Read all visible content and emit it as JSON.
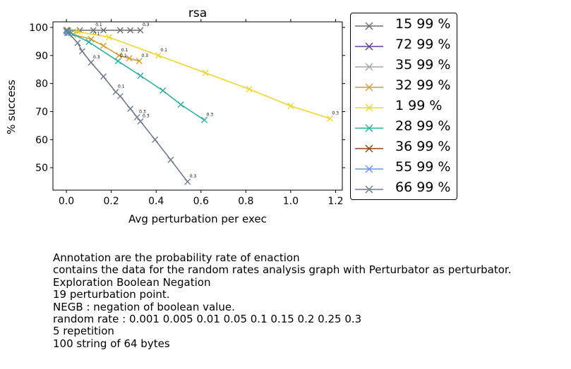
{
  "chart_data": {
    "type": "line",
    "title": "rsa",
    "xlabel": "Avg perturbation per exec",
    "ylabel": "% success",
    "xlim": [
      -0.06,
      1.23
    ],
    "ylim": [
      42,
      102
    ],
    "xticks": [
      "0.0",
      "0.2",
      "0.4",
      "0.6",
      "0.8",
      "1.0",
      "1.2"
    ],
    "yticks": [
      "50",
      "60",
      "70",
      "80",
      "90",
      "100"
    ],
    "grid": false,
    "legend_placement": "outside-right",
    "series": [
      {
        "name": "15 99 %",
        "color": "#6e6e6e",
        "points": [
          [
            0,
            99
          ],
          [
            0.003,
            99
          ],
          [
            0.005,
            99
          ],
          [
            0.06,
            99
          ],
          [
            0.12,
            99
          ],
          [
            0.165,
            99
          ],
          [
            0.24,
            99
          ],
          [
            0.285,
            99
          ],
          [
            0.33,
            99
          ]
        ],
        "annotations": [
          {
            "text": "0.1",
            "i": 4
          },
          {
            "text": "0.3",
            "i": 8
          }
        ]
      },
      {
        "name": "72 99 %",
        "color": "#6a3d9a",
        "points": [
          [
            0,
            99
          ],
          [
            0.001,
            99
          ],
          [
            0.002,
            99
          ]
        ],
        "annotations": []
      },
      {
        "name": "35 99 %",
        "color": "#a6a6a6",
        "points": [
          [
            0,
            99
          ],
          [
            0.001,
            99
          ],
          [
            0.003,
            99
          ]
        ],
        "annotations": []
      },
      {
        "name": "32 99 %",
        "color": "#d39e2c",
        "points": [
          [
            0,
            99
          ],
          [
            0.003,
            99
          ],
          [
            0.006,
            98.5
          ],
          [
            0.03,
            97.5
          ],
          [
            0.11,
            95.8
          ],
          [
            0.165,
            93.5
          ],
          [
            0.235,
            90
          ],
          [
            0.28,
            89
          ],
          [
            0.325,
            88
          ]
        ],
        "annotations": [
          {
            "text": "0.1",
            "i": 4
          },
          {
            "text": "0.1",
            "i": 6
          },
          {
            "text": "0.3",
            "i": 8
          }
        ]
      },
      {
        "name": "1 99 %",
        "color": "#f0d62b",
        "points": [
          [
            0,
            99
          ],
          [
            0.01,
            98.8
          ],
          [
            0.05,
            98.5
          ],
          [
            0.19,
            96.5
          ],
          [
            0.41,
            90
          ],
          [
            0.62,
            83.8
          ],
          [
            0.815,
            78
          ],
          [
            1.0,
            72
          ],
          [
            1.175,
            67.5
          ]
        ],
        "annotations": [
          {
            "text": "0.1",
            "i": 4
          },
          {
            "text": "0.3",
            "i": 8
          }
        ]
      },
      {
        "name": "28 99 %",
        "color": "#2ab0a4",
        "points": [
          [
            0,
            99
          ],
          [
            0.005,
            98.5
          ],
          [
            0.02,
            98
          ],
          [
            0.1,
            94.8
          ],
          [
            0.23,
            88
          ],
          [
            0.33,
            82.8
          ],
          [
            0.43,
            77.5
          ],
          [
            0.51,
            72.5
          ],
          [
            0.615,
            67
          ]
        ],
        "annotations": [
          {
            "text": "0.1",
            "i": 4
          },
          {
            "text": "0.3",
            "i": 8
          }
        ]
      },
      {
        "name": "36 99 %",
        "color": "#8b4513",
        "points": [
          [
            0,
            99
          ],
          [
            0.001,
            99
          ],
          [
            0.003,
            98.8
          ]
        ],
        "annotations": []
      },
      {
        "name": "55 99 %",
        "color": "#6495ed",
        "points": [
          [
            0,
            99
          ],
          [
            0.001,
            98.5
          ],
          [
            0.004,
            98
          ]
        ],
        "annotations": []
      },
      {
        "name": "66 99 %",
        "color": "#6e7b8f",
        "points": [
          [
            0,
            99
          ],
          [
            0.01,
            98
          ],
          [
            0.05,
            94.5
          ],
          [
            0.07,
            91.5
          ],
          [
            0.11,
            87.5
          ],
          [
            0.165,
            82.5
          ],
          [
            0.22,
            77
          ],
          [
            0.24,
            75.5
          ],
          [
            0.285,
            71
          ],
          [
            0.315,
            68
          ],
          [
            0.33,
            66.5
          ],
          [
            0.395,
            60
          ],
          [
            0.465,
            52.8
          ],
          [
            0.54,
            45
          ]
        ],
        "annotations": [
          {
            "text": "0.3",
            "i": 4
          },
          {
            "text": "0.1",
            "i": 6
          },
          {
            "text": "0.3",
            "i": 9
          },
          {
            "text": "0.3",
            "i": 10
          },
          {
            "text": "0.3",
            "i": 13
          }
        ]
      }
    ]
  },
  "caption": {
    "lines": [
      "Annotation are the probability rate of enaction",
      "contains the data for the random rates analysis graph with Perturbator as perturbator.",
      "Exploration Boolean Negation",
      "19 perturbation point.",
      "NEGB : negation of boolean value.",
      "random rate : 0.001 0.005 0.01 0.05 0.1 0.15 0.2 0.25 0.3",
      "5 repetition",
      "100 string of 64 bytes"
    ]
  }
}
